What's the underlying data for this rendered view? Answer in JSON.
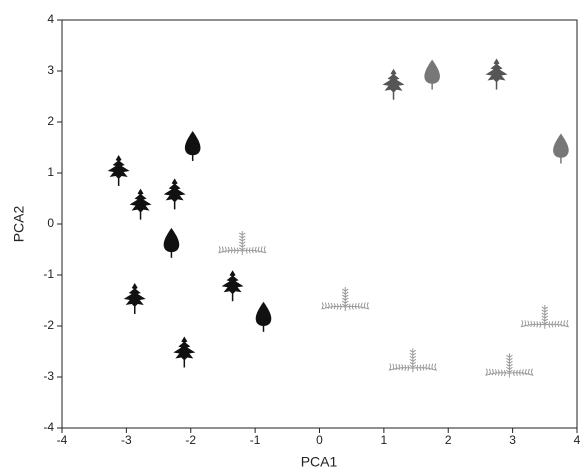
{
  "chart_data": {
    "type": "scatter",
    "x_label": "PCA1",
    "y_label": "PCA2",
    "xlim": [
      -4,
      4
    ],
    "ylim": [
      -4,
      4
    ],
    "xticks": [
      -4,
      -3,
      -2,
      -1,
      0,
      1,
      2,
      3,
      4
    ],
    "yticks": [
      -4,
      -3,
      -2,
      -1,
      0,
      1,
      2,
      3,
      4
    ],
    "grid": false,
    "series": [
      {
        "color": "#111111",
        "marker": "entire",
        "x": [
          -1.97,
          -2.3,
          -0.87
        ],
        "y": [
          1.55,
          -0.35,
          -1.8
        ]
      },
      {
        "color": "#111111",
        "marker": "lobed",
        "x": [
          -3.12,
          -2.78,
          -2.25,
          -2.87,
          -1.35,
          -2.1
        ],
        "y": [
          1.06,
          0.4,
          0.6,
          -1.45,
          -1.2,
          -2.5
        ]
      },
      {
        "color": "#777777",
        "marker": "entire",
        "x": [
          1.75,
          3.75
        ],
        "y": [
          2.95,
          1.5
        ]
      },
      {
        "color": "#555555",
        "marker": "lobed",
        "x": [
          1.15,
          2.75
        ],
        "y": [
          2.75,
          2.95
        ]
      },
      {
        "color": "#999999",
        "marker": "compound",
        "x": [
          -1.2,
          0.4,
          1.45,
          2.95,
          3.5
        ],
        "y": [
          -0.45,
          -1.55,
          -2.75,
          -2.85,
          -1.9
        ]
      }
    ]
  }
}
